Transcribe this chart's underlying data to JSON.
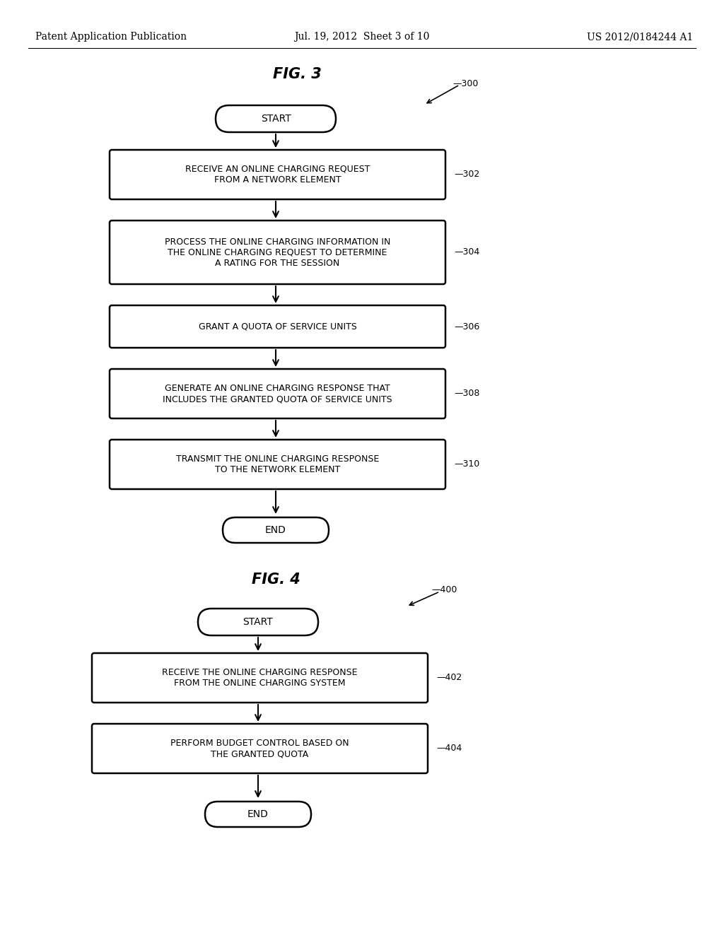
{
  "bg_color": "#ffffff",
  "header_left": "Patent Application Publication",
  "header_mid": "Jul. 19, 2012  Sheet 3 of 10",
  "header_right": "US 2012/0184244 A1",
  "fig3_title": "FIG. 3",
  "fig4_title": "FIG. 4",
  "fig3_ref": "300",
  "fig4_ref": "400",
  "start_text": "START",
  "end_text": "END",
  "boxes_fig3": [
    {
      "id": "302",
      "lines": [
        "RECEIVE AN ONLINE CHARGING REQUEST",
        "FROM A NETWORK ELEMENT"
      ]
    },
    {
      "id": "304",
      "lines": [
        "PROCESS THE ONLINE CHARGING INFORMATION IN",
        "THE ONLINE CHARGING REQUEST TO DETERMINE",
        "A RATING FOR THE SESSION"
      ]
    },
    {
      "id": "306",
      "lines": [
        "GRANT A QUOTA OF SERVICE UNITS"
      ]
    },
    {
      "id": "308",
      "lines": [
        "GENERATE AN ONLINE CHARGING RESPONSE THAT",
        "INCLUDES THE GRANTED QUOTA OF SERVICE UNITS"
      ]
    },
    {
      "id": "310",
      "lines": [
        "TRANSMIT THE ONLINE CHARGING RESPONSE",
        "TO THE NETWORK ELEMENT"
      ]
    }
  ],
  "boxes_fig4": [
    {
      "id": "402",
      "lines": [
        "RECEIVE THE ONLINE CHARGING RESPONSE",
        "FROM THE ONLINE CHARGING SYSTEM"
      ]
    },
    {
      "id": "404",
      "lines": [
        "PERFORM BUDGET CONTROL BASED ON",
        "THE GRANTED QUOTA"
      ]
    }
  ]
}
